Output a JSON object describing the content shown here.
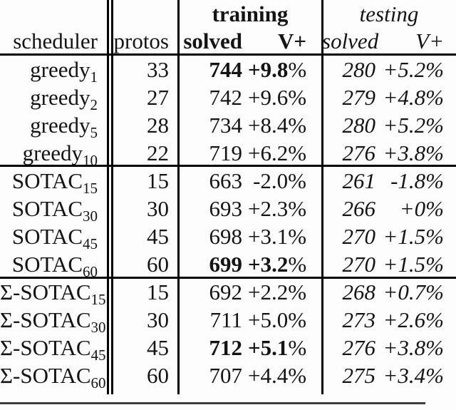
{
  "table": {
    "groups": {
      "training": "training",
      "testing": "testing"
    },
    "headers": {
      "scheduler": "scheduler",
      "protos": "protos",
      "train_solved": "solved",
      "train_vplus": "V+",
      "test_solved": "solved",
      "test_vplus": "V+"
    },
    "symbols": {
      "percent": "%"
    },
    "rows": [
      {
        "base": "greedy",
        "sub": "1",
        "protos": "33",
        "train_solved": "744",
        "train_vplus": "+9.8",
        "test_solved": "280",
        "test_vplus": "+5.2"
      },
      {
        "base": "greedy",
        "sub": "2",
        "protos": "27",
        "train_solved": "742",
        "train_vplus": "+9.6",
        "test_solved": "279",
        "test_vplus": "+4.8"
      },
      {
        "base": "greedy",
        "sub": "5",
        "protos": "28",
        "train_solved": "734",
        "train_vplus": "+8.4",
        "test_solved": "280",
        "test_vplus": "+5.2"
      },
      {
        "base": "greedy",
        "sub": "10",
        "protos": "22",
        "train_solved": "719",
        "train_vplus": "+6.2",
        "test_solved": "276",
        "test_vplus": "+3.8"
      },
      {
        "base": "SOTAC",
        "sub": "15",
        "protos": "15",
        "train_solved": "663",
        "train_vplus": "-2.0",
        "test_solved": "261",
        "test_vplus": "-1.8"
      },
      {
        "base": "SOTAC",
        "sub": "30",
        "protos": "30",
        "train_solved": "693",
        "train_vplus": "+2.3",
        "test_solved": "266",
        "test_vplus": "+0"
      },
      {
        "base": "SOTAC",
        "sub": "45",
        "protos": "45",
        "train_solved": "698",
        "train_vplus": "+3.1",
        "test_solved": "270",
        "test_vplus": "+1.5"
      },
      {
        "base": "SOTAC",
        "sub": "60",
        "protos": "60",
        "train_solved": "699",
        "train_vplus": "+3.2",
        "test_solved": "270",
        "test_vplus": "+1.5"
      },
      {
        "base": "Σ-SOTAC",
        "sub": "15",
        "protos": "15",
        "train_solved": "692",
        "train_vplus": "+2.2",
        "test_solved": "268",
        "test_vplus": "+0.7"
      },
      {
        "base": "Σ-SOTAC",
        "sub": "30",
        "protos": "30",
        "train_solved": "711",
        "train_vplus": "+5.0",
        "test_solved": "273",
        "test_vplus": "+2.6"
      },
      {
        "base": "Σ-SOTAC",
        "sub": "45",
        "protos": "45",
        "train_solved": "712",
        "train_vplus": "+5.1",
        "test_solved": "276",
        "test_vplus": "+3.8"
      },
      {
        "base": "Σ-SOTAC",
        "sub": "60",
        "protos": "60",
        "train_solved": "707",
        "train_vplus": "+4.4",
        "test_solved": "275",
        "test_vplus": "+3.4"
      }
    ]
  }
}
